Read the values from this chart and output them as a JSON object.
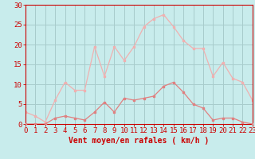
{
  "hours": [
    0,
    1,
    2,
    3,
    4,
    5,
    6,
    7,
    8,
    9,
    10,
    11,
    12,
    13,
    14,
    15,
    16,
    17,
    18,
    19,
    20,
    21,
    22,
    23
  ],
  "wind_mean": [
    0,
    0,
    0,
    1.5,
    2,
    1.5,
    1,
    3,
    5.5,
    3,
    6.5,
    6,
    6.5,
    7,
    9.5,
    10.5,
    8,
    5,
    4,
    1,
    1.5,
    1.5,
    0.5,
    0
  ],
  "wind_gusts": [
    3,
    2,
    0.5,
    6,
    10.5,
    8.5,
    8.5,
    19.5,
    12,
    19.5,
    16,
    19.5,
    24.5,
    26.5,
    27.5,
    24.5,
    21,
    19,
    19,
    12,
    15.5,
    11.5,
    10.5,
    6
  ],
  "wind_mean_color": "#e08080",
  "wind_gusts_color": "#f0b0b0",
  "background_color": "#c8ecec",
  "grid_color": "#a8cccc",
  "axis_color": "#cc0000",
  "text_color": "#cc0000",
  "xlabel": "Vent moyen/en rafales ( km/h )",
  "ylim": [
    0,
    30
  ],
  "yticks": [
    0,
    5,
    10,
    15,
    20,
    25,
    30
  ],
  "xlim": [
    0,
    23
  ],
  "label_fontsize": 6.5
}
